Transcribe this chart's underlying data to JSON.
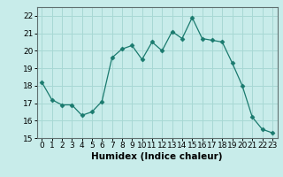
{
  "x": [
    0,
    1,
    2,
    3,
    4,
    5,
    6,
    7,
    8,
    9,
    10,
    11,
    12,
    13,
    14,
    15,
    16,
    17,
    18,
    19,
    20,
    21,
    22,
    23
  ],
  "y": [
    18.2,
    17.2,
    16.9,
    16.9,
    16.3,
    16.5,
    17.1,
    19.6,
    20.1,
    20.3,
    19.5,
    20.5,
    20.0,
    21.1,
    20.7,
    21.9,
    20.7,
    20.6,
    20.5,
    19.3,
    18.0,
    16.2,
    15.5,
    15.3
  ],
  "line_color": "#1a7a6e",
  "marker": "D",
  "marker_size": 2.5,
  "bg_color": "#c8ecea",
  "grid_color": "#a8d8d4",
  "xlabel": "Humidex (Indice chaleur)",
  "xlim": [
    -0.5,
    23.5
  ],
  "ylim": [
    15,
    22.5
  ],
  "yticks": [
    15,
    16,
    17,
    18,
    19,
    20,
    21,
    22
  ],
  "xticks": [
    0,
    1,
    2,
    3,
    4,
    5,
    6,
    7,
    8,
    9,
    10,
    11,
    12,
    13,
    14,
    15,
    16,
    17,
    18,
    19,
    20,
    21,
    22,
    23
  ],
  "xlabel_fontsize": 7.5,
  "tick_fontsize": 6.5
}
